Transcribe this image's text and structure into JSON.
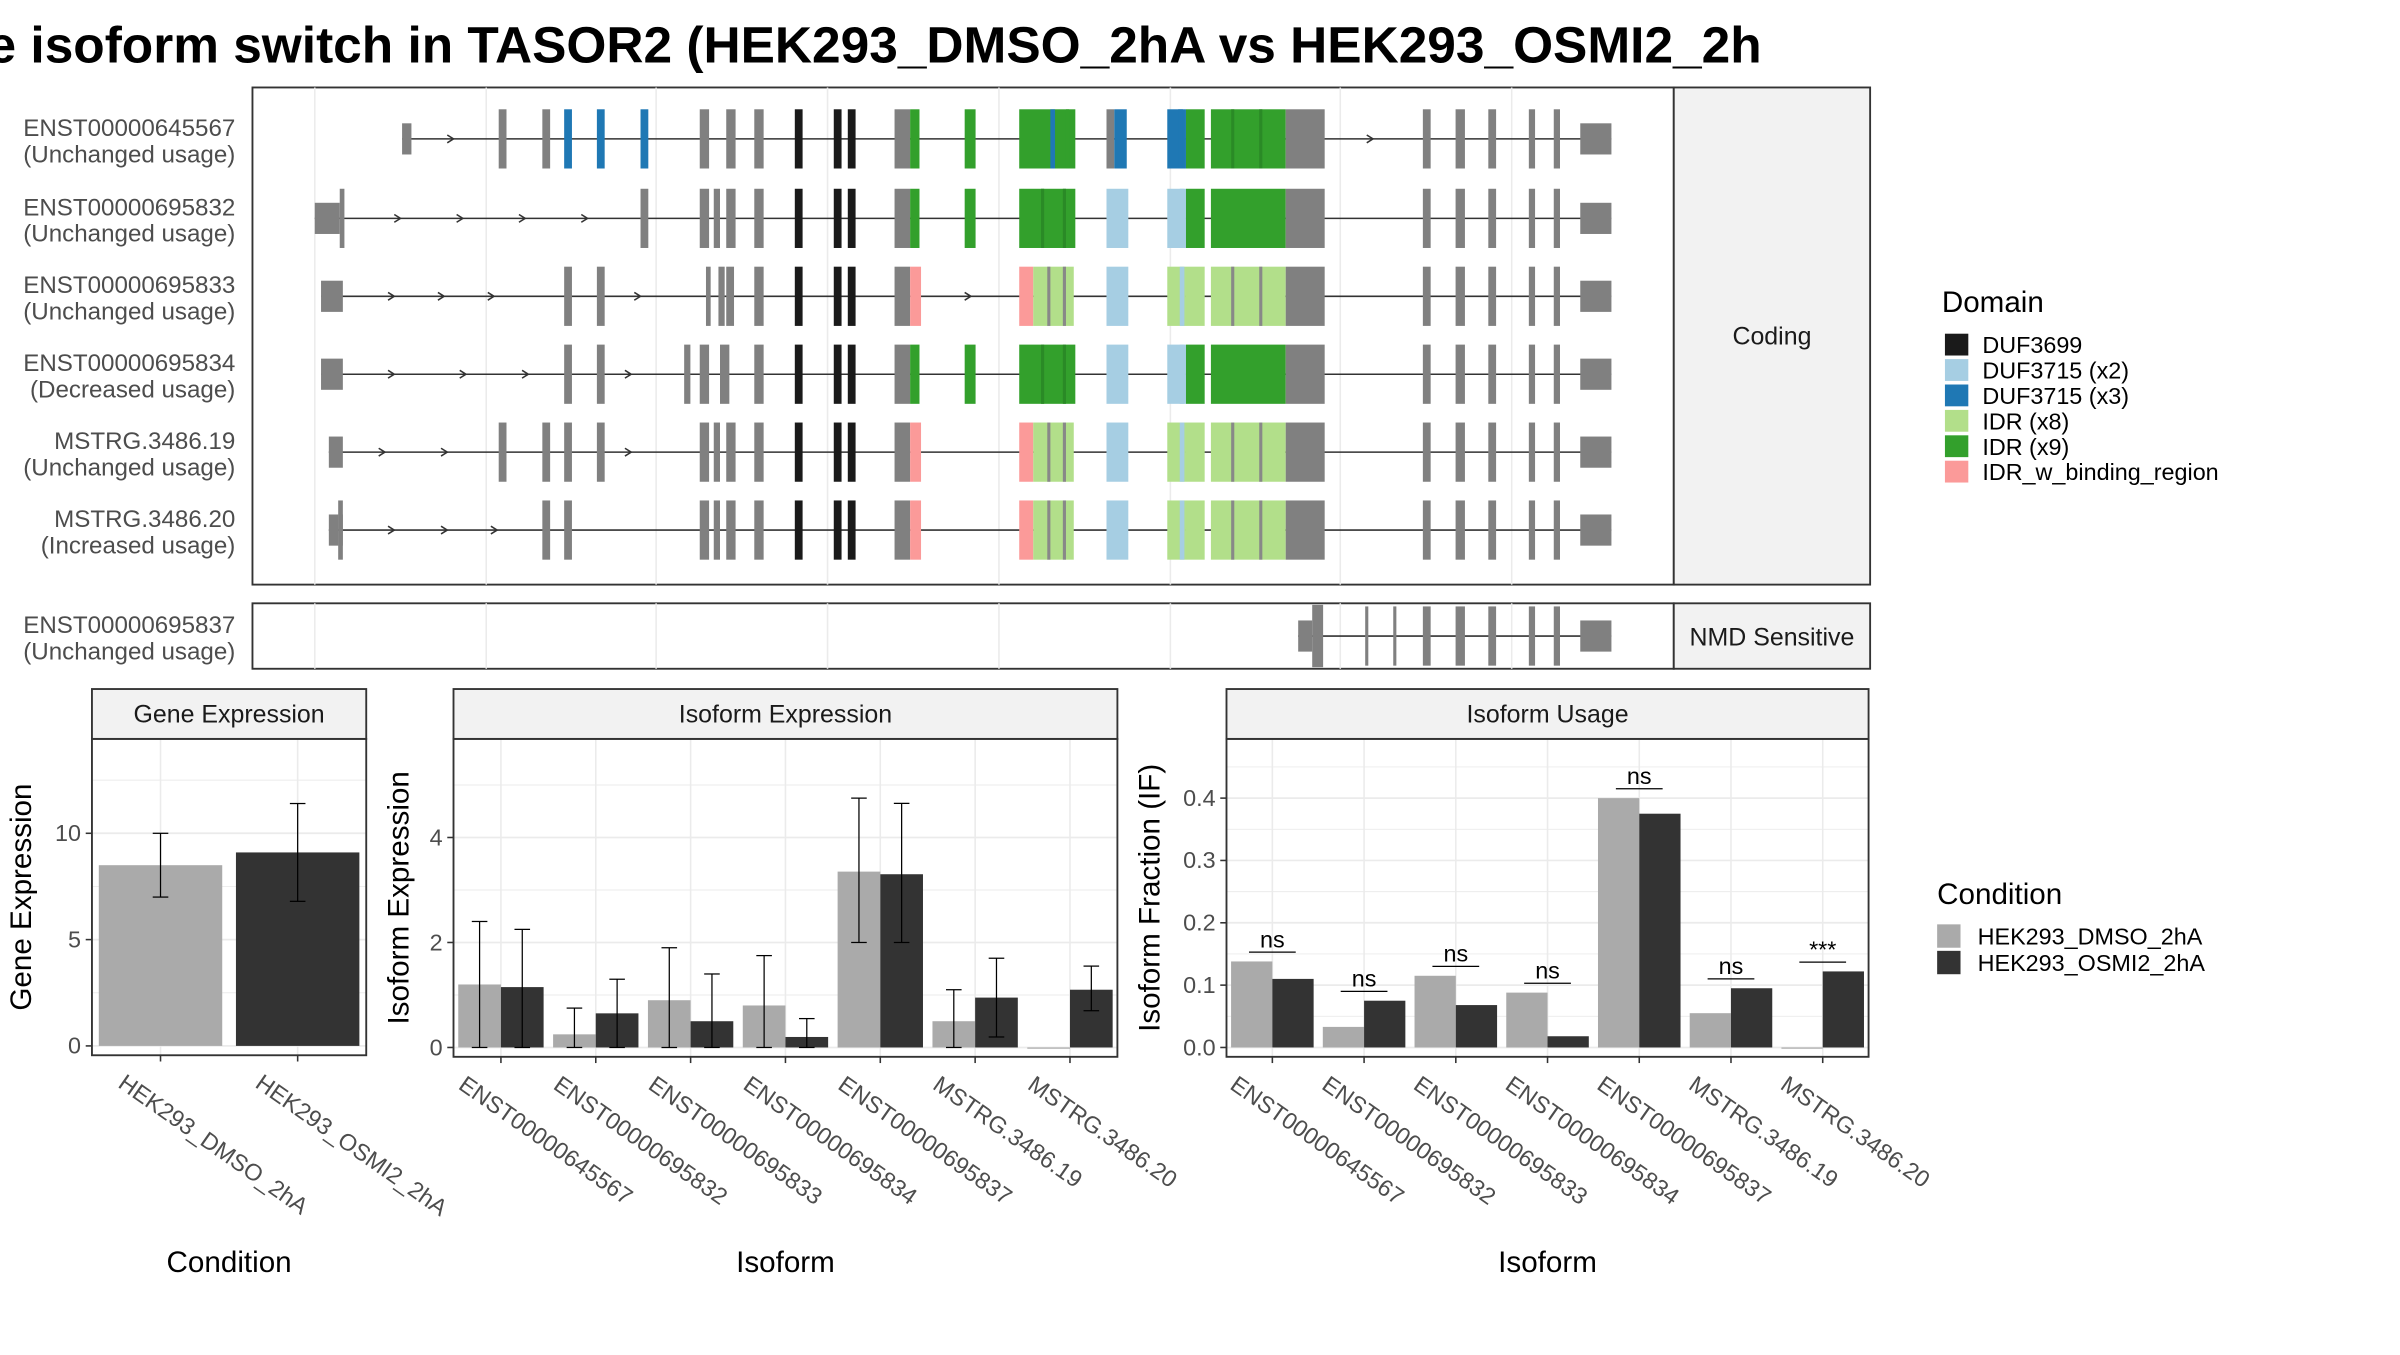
{
  "title": "e isoform switch in TASOR2 (HEK293_DMSO_2hA vs HEK293_OSMI2_2h",
  "structure": {
    "facets": [
      "Coding",
      "NMD Sensitive"
    ],
    "isoforms": [
      {
        "id": "ENST00000645567",
        "status": "(Unchanged usage)",
        "group": "Coding"
      },
      {
        "id": "ENST00000695832",
        "status": "(Unchanged usage)",
        "group": "Coding"
      },
      {
        "id": "ENST00000695833",
        "status": "(Unchanged usage)",
        "group": "Coding"
      },
      {
        "id": "ENST00000695834",
        "status": "(Decreased usage)",
        "group": "Coding"
      },
      {
        "id": "MSTRG.3486.19",
        "status": "(Unchanged usage)",
        "group": "Coding"
      },
      {
        "id": "MSTRG.3486.20",
        "status": "(Increased usage)",
        "group": "Coding"
      },
      {
        "id": "ENST00000695837",
        "status": "(Unchanged usage)",
        "group": "NMD Sensitive"
      }
    ]
  },
  "legend_domain": {
    "title": "Domain",
    "items": [
      {
        "label": "DUF3699",
        "color": "#1a1a1a"
      },
      {
        "label": "DUF3715 (x2)",
        "color": "#a6cee3"
      },
      {
        "label": "DUF3715 (x3)",
        "color": "#1f78b4"
      },
      {
        "label": "IDR (x8)",
        "color": "#b2df8a"
      },
      {
        "label": "IDR (x9)",
        "color": "#33a02c"
      },
      {
        "label": "IDR_w_binding_region",
        "color": "#fb9a99"
      }
    ]
  },
  "legend_condition": {
    "title": "Condition",
    "items": [
      {
        "label": "HEK293_DMSO_2hA",
        "color": "#aaaaaa"
      },
      {
        "label": "HEK293_OSMI2_2hA",
        "color": "#333333"
      }
    ]
  },
  "chart_data": [
    {
      "type": "bar",
      "title": "Gene Expression",
      "xlabel": "Condition",
      "ylabel": "Gene Expression",
      "ylim": [
        0,
        14
      ],
      "yticks": [
        0,
        5,
        10
      ],
      "categories": [
        "HEK293_DMSO_2hA",
        "HEK293_OSMI2_2hA"
      ],
      "values": [
        8.5,
        9.1
      ],
      "error_low": [
        7.0,
        6.8
      ],
      "error_high": [
        10.0,
        11.4
      ]
    },
    {
      "type": "bar",
      "title": "Isoform Expression",
      "xlabel": "Isoform",
      "ylabel": "Isoform Expression",
      "ylim": [
        0,
        5.7
      ],
      "yticks": [
        0,
        2,
        4
      ],
      "categories": [
        "ENST00000645567",
        "ENST00000695832",
        "ENST00000695833",
        "ENST00000695834",
        "ENST00000695837",
        "MSTRG.3486.19",
        "MSTRG.3486.20"
      ],
      "series": [
        {
          "name": "HEK293_DMSO_2hA",
          "values": [
            1.2,
            0.25,
            0.9,
            0.8,
            3.35,
            0.5,
            0.0
          ],
          "error_low": [
            0.0,
            0.0,
            0.0,
            0.0,
            2.0,
            0.0,
            null
          ],
          "error_high": [
            2.4,
            0.75,
            1.9,
            1.75,
            4.75,
            1.1,
            null
          ]
        },
        {
          "name": "HEK293_OSMI2_2hA",
          "values": [
            1.15,
            0.65,
            0.5,
            0.2,
            3.3,
            0.95,
            1.1
          ],
          "error_low": [
            0.0,
            0.0,
            0.0,
            0.0,
            2.0,
            0.2,
            0.7
          ],
          "error_high": [
            2.25,
            1.3,
            1.4,
            0.55,
            4.65,
            1.7,
            1.55
          ]
        }
      ]
    },
    {
      "type": "bar",
      "title": "Isoform Usage",
      "xlabel": "Isoform",
      "ylabel": "Isoform Fraction (IF)",
      "ylim": [
        0,
        0.48
      ],
      "yticks": [
        "0.0",
        "0.1",
        "0.2",
        "0.3",
        "0.4"
      ],
      "categories": [
        "ENST00000645567",
        "ENST00000695832",
        "ENST00000695833",
        "ENST00000695834",
        "ENST00000695837",
        "MSTRG.3486.19",
        "MSTRG.3486.20"
      ],
      "series": [
        {
          "name": "HEK293_DMSO_2hA",
          "values": [
            0.138,
            0.033,
            0.115,
            0.088,
            0.4,
            0.055,
            0.0
          ]
        },
        {
          "name": "HEK293_OSMI2_2hA",
          "values": [
            0.11,
            0.075,
            0.068,
            0.018,
            0.375,
            0.095,
            0.122
          ]
        }
      ],
      "significance": [
        "ns",
        "ns",
        "ns",
        "ns",
        "ns",
        "ns",
        "***"
      ]
    }
  ]
}
